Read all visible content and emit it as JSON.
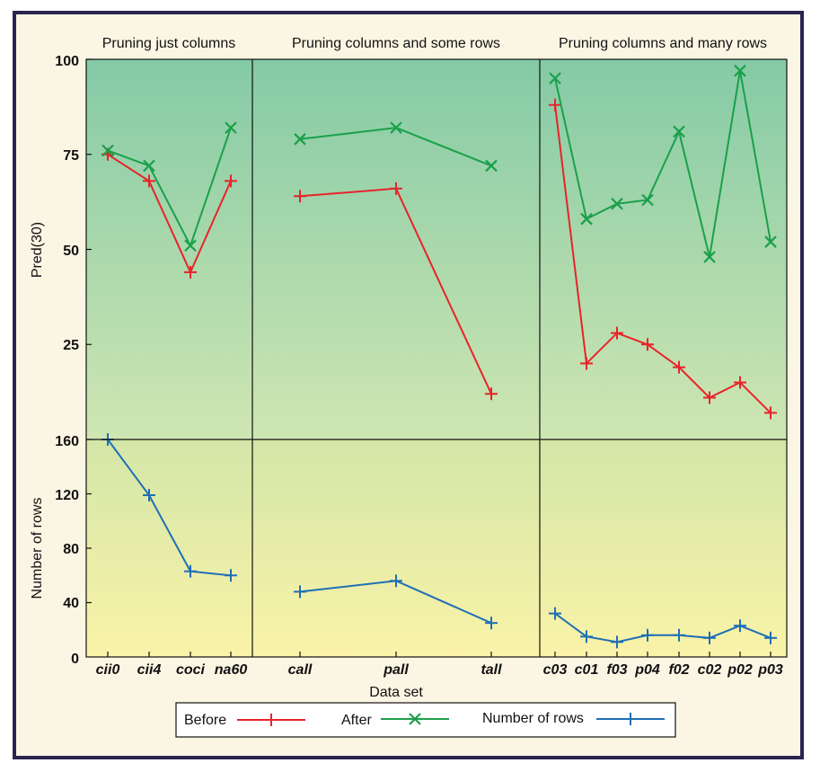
{
  "colors": {
    "before": "#e8232a",
    "after": "#1aa04a",
    "rows": "#1f6fb5",
    "frame": "#2a2450",
    "top_grad_top": "#84caa6",
    "top_grad_bottom": "#cfe6b2",
    "bottom_grad_top": "#d3e6a8",
    "bottom_grad_bottom": "#faf3a8"
  },
  "chart_data": {
    "type": "line",
    "xlabel": "Data set",
    "panels": [
      {
        "title": "Pruning just columns",
        "categories": [
          "cii0",
          "cii4",
          "coci",
          "na60"
        ],
        "series": [
          {
            "name": "Before",
            "values": [
              75,
              68,
              44,
              68
            ]
          },
          {
            "name": "After",
            "values": [
              76,
              72,
              51,
              82
            ]
          }
        ],
        "rows_values": [
          160,
          119,
          63,
          60
        ]
      },
      {
        "title": "Pruning columns and some rows",
        "categories": [
          "call",
          "pall",
          "tall"
        ],
        "series": [
          {
            "name": "Before",
            "values": [
              64,
              66,
              12
            ]
          },
          {
            "name": "After",
            "values": [
              79,
              82,
              72
            ]
          }
        ],
        "rows_values": [
          48,
          56,
          25
        ]
      },
      {
        "title": "Pruning columns and many rows",
        "categories": [
          "c03",
          "c01",
          "f03",
          "p04",
          "f02",
          "c02",
          "p02",
          "p03"
        ],
        "series": [
          {
            "name": "Before",
            "values": [
              88,
              20,
              28,
              25,
              19,
              11,
              15,
              7
            ]
          },
          {
            "name": "After",
            "values": [
              95,
              58,
              62,
              63,
              81,
              48,
              97,
              52
            ]
          }
        ],
        "rows_values": [
          32,
          15,
          11,
          16,
          16,
          14,
          23,
          14
        ]
      }
    ],
    "top_axis": {
      "ylabel": "Pred(30)",
      "ylim": [
        0,
        100
      ],
      "ticks": [
        "100",
        "75",
        "50",
        "25"
      ]
    },
    "bottom_axis": {
      "ylabel": "Number of rows",
      "ylim": [
        0,
        160
      ],
      "ticks": [
        "160",
        "120",
        "80",
        "40",
        "0"
      ]
    },
    "legend": [
      {
        "label": "Before",
        "marker": "plus",
        "color": "#e8232a"
      },
      {
        "label": "After",
        "marker": "x",
        "color": "#1aa04a"
      },
      {
        "label": "Number of rows",
        "marker": "plus",
        "color": "#1f6fb5"
      }
    ],
    "legend_position": "bottom-center",
    "grid": false
  }
}
